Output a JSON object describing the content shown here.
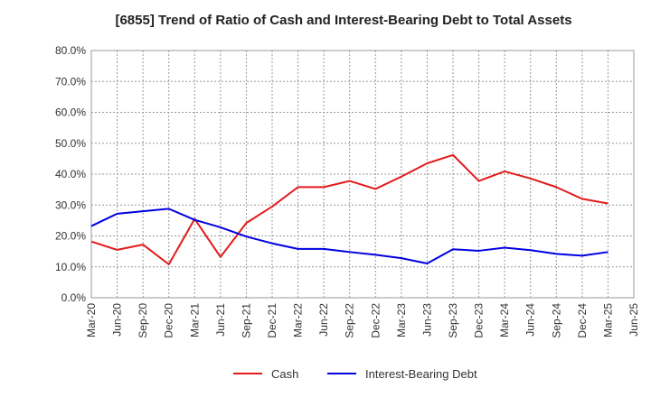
{
  "chart_data": {
    "type": "line",
    "title": "[6855]  Trend of Ratio of Cash and Interest-Bearing Debt to Total Assets",
    "x": [
      "Mar-20",
      "Jun-20",
      "Sep-20",
      "Dec-20",
      "Mar-21",
      "Jun-21",
      "Sep-21",
      "Dec-21",
      "Mar-22",
      "Jun-22",
      "Sep-22",
      "Dec-22",
      "Mar-23",
      "Jun-23",
      "Sep-23",
      "Dec-23",
      "Mar-24",
      "Jun-24",
      "Sep-24",
      "Dec-24",
      "Mar-25",
      "Jun-25"
    ],
    "y_ticks": [
      "0.0%",
      "10.0%",
      "20.0%",
      "30.0%",
      "40.0%",
      "50.0%",
      "60.0%",
      "70.0%",
      "80.0%"
    ],
    "ylim": [
      0,
      80
    ],
    "grid": true,
    "legend_position": "bottom",
    "series": [
      {
        "name": "Cash",
        "color": "#e31a1c",
        "values": [
          18.2,
          15.5,
          17.2,
          10.8,
          25.5,
          13.2,
          24.2,
          29.5,
          35.8,
          35.8,
          37.8,
          35.2,
          39.2,
          43.5,
          46.2,
          37.8,
          40.9,
          38.6,
          35.8,
          32.0,
          30.5,
          null
        ]
      },
      {
        "name": "Interest-Bearing Debt",
        "color": "#0000e0",
        "values": [
          23.2,
          27.2,
          28.0,
          28.8,
          25.2,
          22.8,
          19.8,
          17.6,
          15.8,
          15.8,
          14.8,
          13.9,
          12.8,
          11.1,
          15.7,
          15.2,
          16.2,
          15.4,
          14.2,
          13.6,
          14.8,
          null
        ]
      }
    ]
  }
}
